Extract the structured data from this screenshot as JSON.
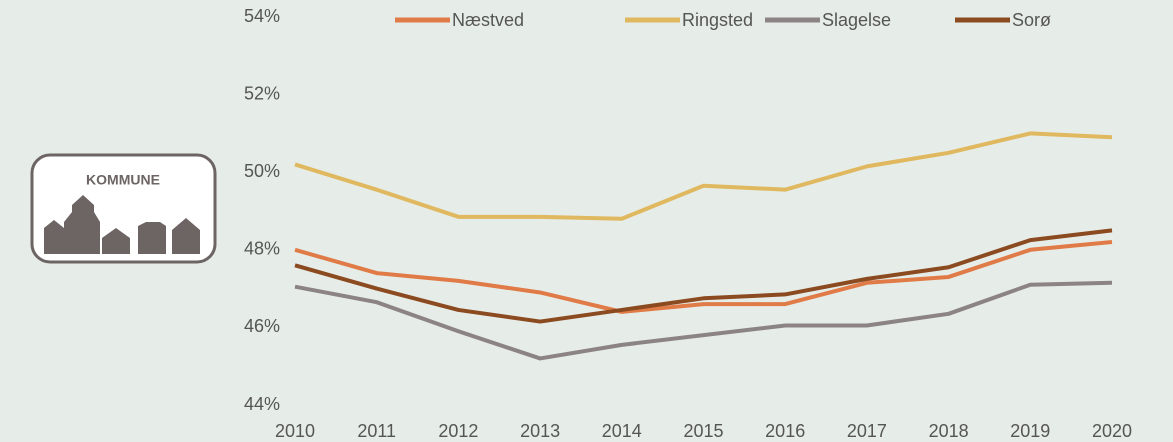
{
  "logo_text": "KOMMUNE",
  "chart_data": {
    "type": "line",
    "categories": [
      "2010",
      "2011",
      "2012",
      "2013",
      "2014",
      "2015",
      "2016",
      "2017",
      "2018",
      "2019",
      "2020"
    ],
    "series": [
      {
        "name": "Næstved",
        "color": "#e07b47",
        "values": [
          48.0,
          47.4,
          47.2,
          46.9,
          46.4,
          46.6,
          46.6,
          47.15,
          47.3,
          48.0,
          48.2
        ]
      },
      {
        "name": "Ringsted",
        "color": "#e0b85f",
        "values": [
          50.2,
          49.55,
          48.85,
          48.85,
          48.8,
          49.65,
          49.55,
          50.15,
          50.5,
          51.0,
          50.9
        ]
      },
      {
        "name": "Slagelse",
        "color": "#8c8484",
        "values": [
          47.05,
          46.65,
          45.9,
          45.2,
          45.55,
          45.8,
          46.05,
          46.05,
          46.35,
          47.1,
          47.15
        ]
      },
      {
        "name": "Sorø",
        "color": "#8b4a1f",
        "values": [
          47.6,
          47.0,
          46.45,
          46.15,
          46.45,
          46.75,
          46.85,
          47.25,
          47.55,
          48.25,
          48.5
        ]
      }
    ],
    "ylim": [
      44,
      54
    ],
    "yticks": [
      {
        "value": 44,
        "label": "44%"
      },
      {
        "value": 46,
        "label": "46%"
      },
      {
        "value": 48,
        "label": "48%"
      },
      {
        "value": 50,
        "label": "50%"
      },
      {
        "value": 52,
        "label": "52%"
      },
      {
        "value": 54,
        "label": "54%"
      }
    ],
    "grid": false,
    "legend": "top"
  }
}
